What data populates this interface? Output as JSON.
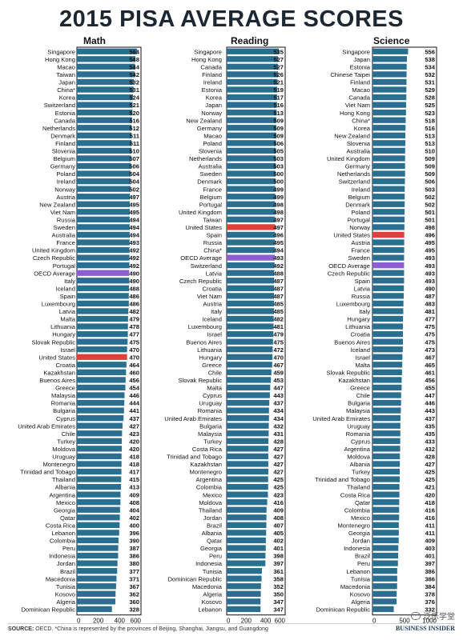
{
  "title": "2015 PISA AVERAGE SCORES",
  "source_label": "SOURCE:",
  "source_text": "OECD. *China is represented by the provinces of Beijing, Shanghai, Jiangsu, and Guangdong",
  "brand": "BUSINESS INSIDER",
  "watermark": "泛乐学堂",
  "colors": {
    "bar": "#2a6f8f",
    "us_bar": "#e0403b",
    "oecd_bar": "#8b5fcf",
    "border": "#111111"
  },
  "chart_data": [
    {
      "type": "bar",
      "orientation": "horizontal",
      "title": "Math",
      "xlim": [
        0,
        600
      ],
      "ticks": [
        "0",
        "200",
        "400",
        "600"
      ],
      "categories": [
        "Singapore",
        "Hong Kong",
        "Macao",
        "Taiwan",
        "Japan",
        "China*",
        "Korea",
        "Switzerland",
        "Estonia",
        "Canada",
        "Netherlands",
        "Denmark",
        "Finland",
        "Slovenia",
        "Belgium",
        "Germany",
        "Poland",
        "Ireland",
        "Norway",
        "Austria",
        "New Zealand",
        "Viet Nam",
        "Russia",
        "Sweden",
        "Australia",
        "France",
        "United Kingdom",
        "Czech Republic",
        "Portugal",
        "OECD Average",
        "Italy",
        "Iceland",
        "Spain",
        "Luxembourg",
        "Latvia",
        "Malta",
        "Lithuania",
        "Hungary",
        "Slovak Republic",
        "Israel",
        "United States",
        "Croatia",
        "Kazakhstan",
        "Buenos Aires",
        "Greece",
        "Malaysia",
        "Romania",
        "Bulgaria",
        "Cyprus",
        "United Arab Emirates",
        "Chile",
        "Turkey",
        "Moldova",
        "Uruguay",
        "Montenegro",
        "Trinidad and Tobago",
        "Thailand",
        "Albania",
        "Argentina",
        "Mexico",
        "Georgia",
        "Qatar",
        "Costa Rica",
        "Lebanon",
        "Colombia",
        "Peru",
        "Indonesia",
        "Jordan",
        "Brazil",
        "Macedonia",
        "Tunisia",
        "Kosovo",
        "Algeria",
        "Dominican Republic"
      ],
      "values": [
        564,
        548,
        544,
        542,
        532,
        531,
        524,
        521,
        520,
        516,
        512,
        511,
        511,
        510,
        507,
        506,
        504,
        504,
        502,
        497,
        495,
        495,
        494,
        494,
        494,
        493,
        492,
        492,
        492,
        490,
        490,
        488,
        486,
        486,
        482,
        479,
        478,
        477,
        475,
        470,
        470,
        464,
        460,
        456,
        454,
        446,
        444,
        441,
        437,
        427,
        423,
        420,
        420,
        418,
        418,
        417,
        415,
        413,
        409,
        408,
        404,
        402,
        400,
        396,
        390,
        387,
        386,
        380,
        377,
        371,
        367,
        362,
        360,
        328
      ]
    },
    {
      "type": "bar",
      "orientation": "horizontal",
      "title": "Reading",
      "xlim": [
        0,
        600
      ],
      "ticks": [
        "0",
        "200",
        "400",
        "600"
      ],
      "categories": [
        "Singapore",
        "Hong Kong",
        "Canada",
        "Finland",
        "Ireland",
        "Estonia",
        "Korea",
        "Japan",
        "Norway",
        "New Zealand",
        "Germany",
        "Macao",
        "Poland",
        "Slovenia",
        "Netherlands",
        "Australia",
        "Sweden",
        "Denmark",
        "France",
        "Belgium",
        "Portugal",
        "United Kingdom",
        "Taiwan",
        "United States",
        "Spain",
        "Russia",
        "China*",
        "OECD Average",
        "Switzerland",
        "Latvia",
        "Czech Republic",
        "Croatia",
        "Viet Nam",
        "Austria",
        "Italy",
        "Iceland",
        "Luxembourg",
        "Israel",
        "Buenos Aires",
        "Lithuania",
        "Hungary",
        "Greece",
        "Chile",
        "Slovak Republic",
        "Malta",
        "Cyprus",
        "Uruguay",
        "Romania",
        "United Arab Emirates",
        "Bulgaria",
        "Malaysia",
        "Turkey",
        "Costa Rica",
        "Trinidad and Tobago",
        "Kazakhstan",
        "Montenegro",
        "Argentina",
        "Colombia",
        "Mexico",
        "Moldova",
        "Thailand",
        "Jordan",
        "Brazil",
        "Albania",
        "Qatar",
        "Georgia",
        "Peru",
        "Indonesia",
        "Tunisia",
        "Dominican Republic",
        "Macedonia",
        "Algeria",
        "Kosovo",
        "Lebanon"
      ],
      "values": [
        535,
        527,
        527,
        526,
        521,
        519,
        517,
        516,
        513,
        509,
        509,
        509,
        506,
        505,
        503,
        503,
        500,
        500,
        499,
        499,
        498,
        498,
        497,
        497,
        496,
        495,
        494,
        493,
        492,
        488,
        487,
        487,
        487,
        485,
        485,
        482,
        481,
        479,
        475,
        472,
        470,
        467,
        459,
        453,
        447,
        443,
        437,
        434,
        434,
        432,
        431,
        428,
        427,
        427,
        427,
        427,
        425,
        425,
        423,
        416,
        409,
        408,
        407,
        405,
        402,
        401,
        398,
        397,
        361,
        358,
        352,
        350,
        347,
        347
      ]
    },
    {
      "type": "bar",
      "orientation": "horizontal",
      "title": "Science",
      "xlim": [
        0,
        1000
      ],
      "ticks": [
        "0",
        "500",
        "1000"
      ],
      "categories": [
        "Singapore",
        "Japan",
        "Estonia",
        "Chinese Taipei",
        "Finland",
        "Macao",
        "Canada",
        "Viet Nam",
        "Hong Kong",
        "China*",
        "Korea",
        "New Zealand",
        "Slovenia",
        "Australia",
        "United Kingdom",
        "Germany",
        "Netherlands",
        "Switzerland",
        "Ireland",
        "Belgium",
        "Denmark",
        "Poland",
        "Portugal",
        "Norway",
        "United States",
        "Austria",
        "France",
        "Sweden",
        "OECD Average",
        "Czech Republic",
        "Spain",
        "Latvia",
        "Russia",
        "Luxembourg",
        "Italy",
        "Hungary",
        "Lithuania",
        "Croatia",
        "Buenos Aires",
        "Iceland",
        "Israel",
        "Malta",
        "Slovak Republic",
        "Kazakhstan",
        "Greece",
        "Chile",
        "Bulgaria",
        "Malaysia",
        "United Arab Emirates",
        "Uruguay",
        "Romania",
        "Cyprus",
        "Argentina",
        "Moldova",
        "Albania",
        "Turkey",
        "Trinidad and Tobago",
        "Thailand",
        "Costa Rica",
        "Qatar",
        "Colombia",
        "Mexico",
        "Montenegro",
        "Georgia",
        "Jordan",
        "Indonesia",
        "Brazil",
        "Peru",
        "Lebanon",
        "Tunisia",
        "Macedonia",
        "Kosovo",
        "Algeria",
        "Dominican Republic"
      ],
      "values": [
        556,
        538,
        534,
        532,
        531,
        529,
        528,
        525,
        523,
        518,
        516,
        513,
        513,
        510,
        509,
        509,
        509,
        506,
        503,
        502,
        502,
        501,
        501,
        498,
        496,
        495,
        495,
        493,
        493,
        493,
        493,
        490,
        487,
        483,
        481,
        477,
        475,
        475,
        475,
        473,
        467,
        465,
        461,
        456,
        455,
        447,
        446,
        443,
        437,
        435,
        435,
        433,
        432,
        428,
        427,
        425,
        425,
        421,
        420,
        418,
        416,
        416,
        411,
        411,
        409,
        403,
        401,
        397,
        386,
        386,
        384,
        378,
        376,
        332
      ]
    }
  ]
}
